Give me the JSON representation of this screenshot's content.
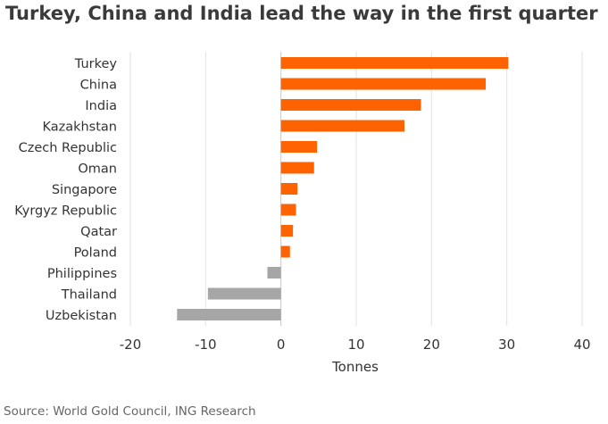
{
  "chart_data": {
    "type": "bar",
    "orientation": "horizontal",
    "title": "Turkey, China and India lead the way in the first quarter",
    "xlabel": "Tonnes",
    "ylabel": "",
    "categories": [
      "Turkey",
      "China",
      "India",
      "Kazakhstan",
      "Czech Republic",
      "Oman",
      "Singapore",
      "Kyrgyz Republic",
      "Qatar",
      "Poland",
      "Philippines",
      "Thailand",
      "Uzbekistan"
    ],
    "values": [
      30.2,
      27.2,
      18.6,
      16.4,
      4.8,
      4.4,
      2.2,
      2.0,
      1.6,
      1.2,
      -1.8,
      -9.7,
      -13.8
    ],
    "xlim": [
      -20,
      40
    ],
    "xticks": [
      "-20",
      "-10",
      "0",
      "10",
      "20",
      "30",
      "40"
    ],
    "xtick_values": [
      -20,
      -10,
      0,
      10,
      20,
      30,
      40
    ],
    "grid": true,
    "colors": {
      "positive": "#ff6200",
      "negative": "#a6a6a6",
      "grid": "#e2e2e2",
      "zero_line": "#c8c8c8"
    },
    "source": "Source: World Gold Council, ING Research"
  }
}
